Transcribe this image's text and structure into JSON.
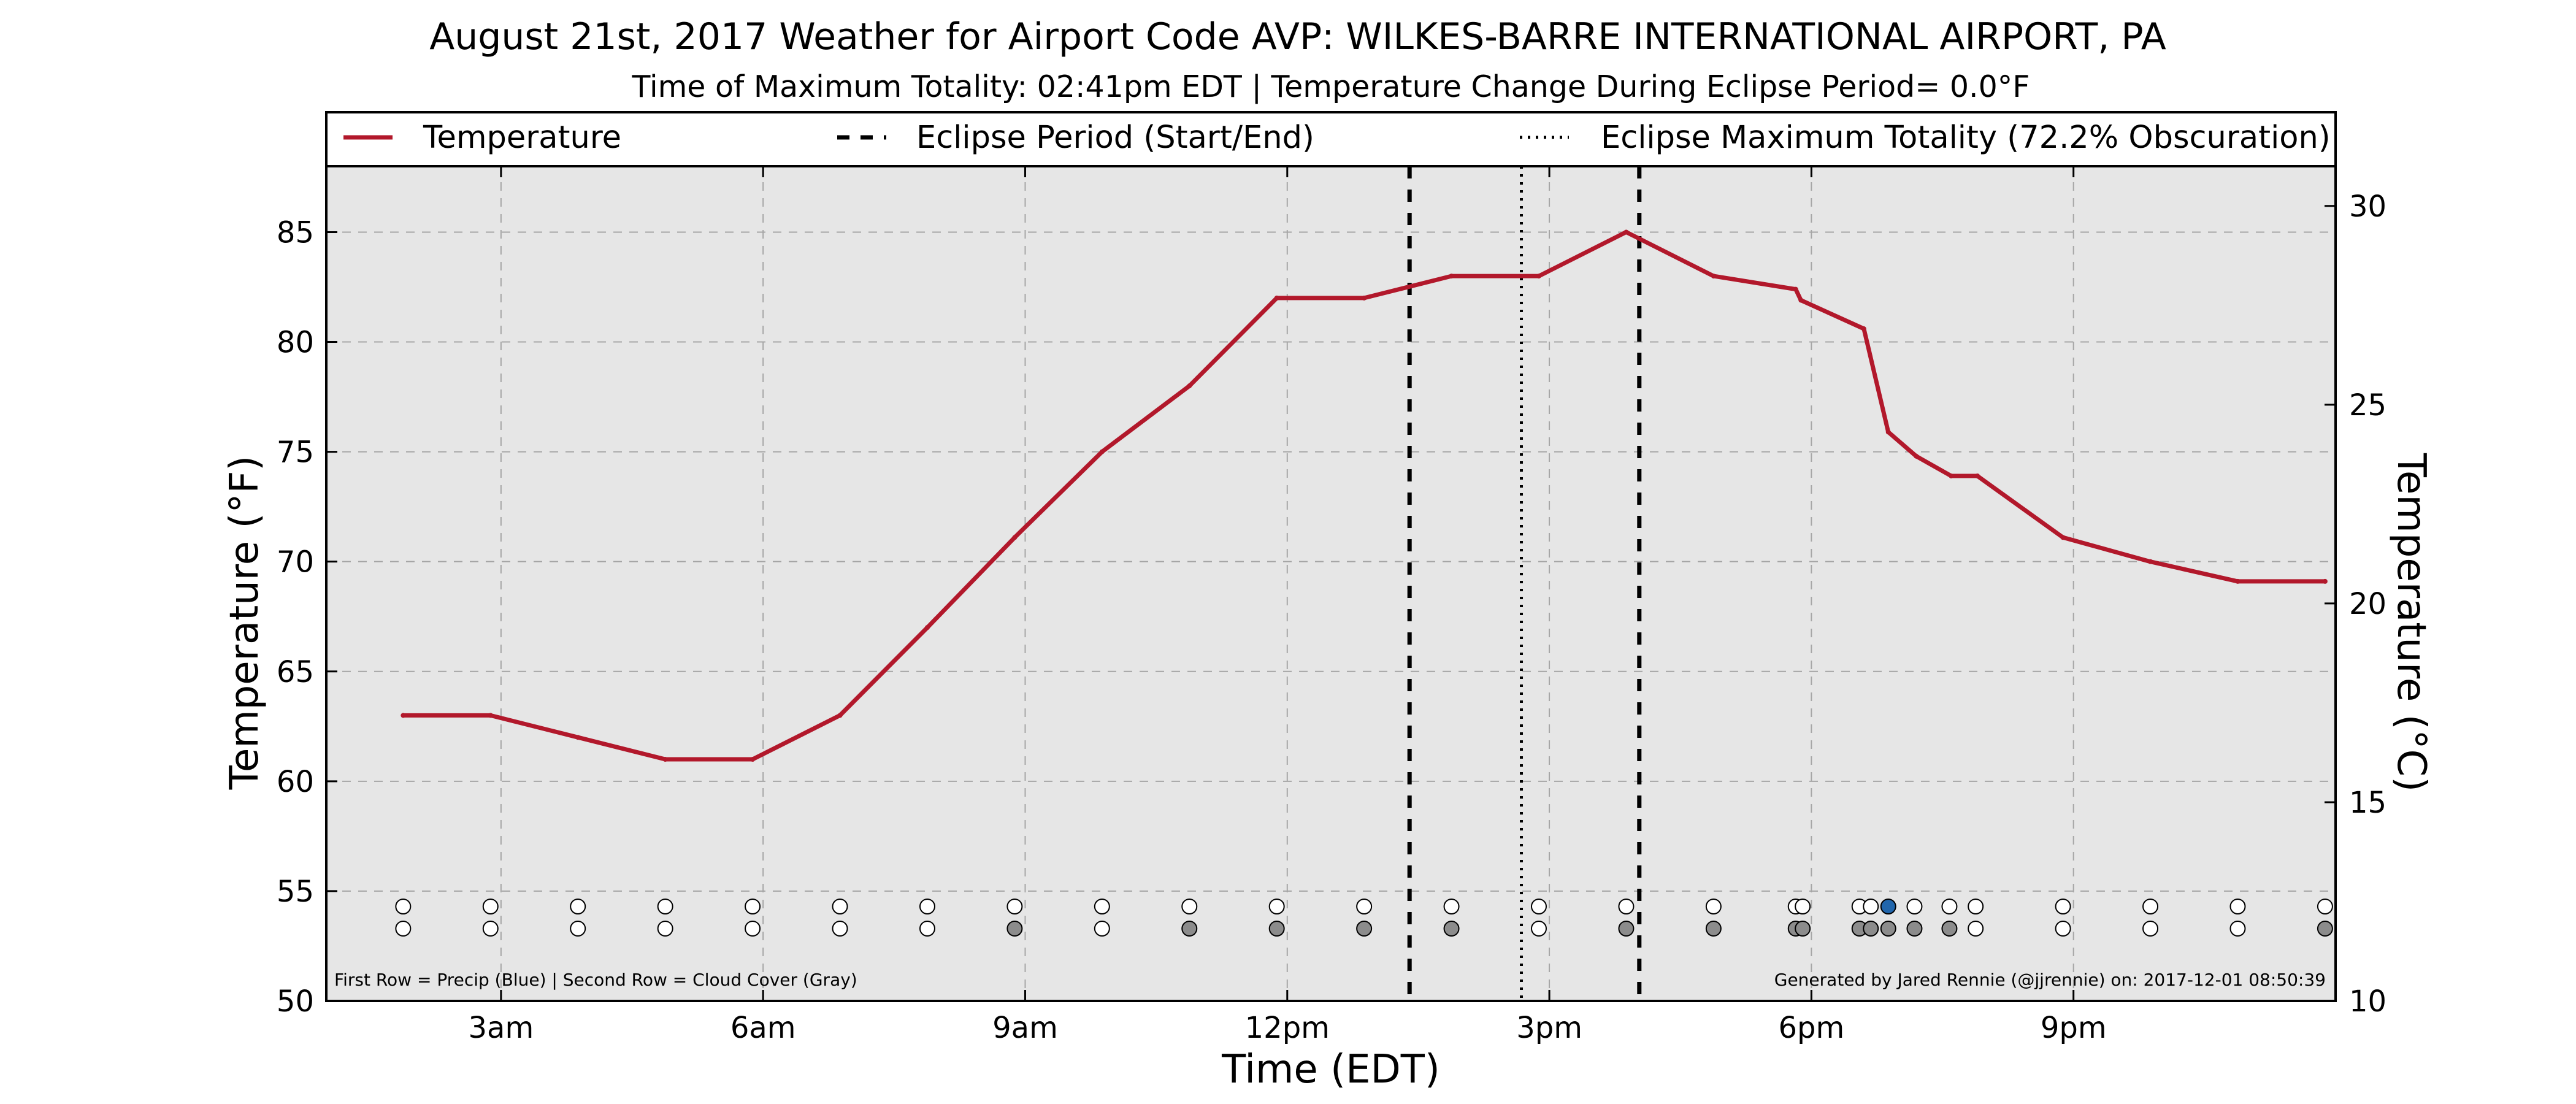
{
  "chart_data": {
    "type": "line",
    "title": "August 21st, 2017 Weather for Airport Code AVP: WILKES-BARRE INTERNATIONAL AIRPORT, PA",
    "subtitle": "Time of Maximum Totality: 02:41pm EDT | Temperature Change During Eclipse Period= 0.0°F",
    "xlabel": "Time (EDT)",
    "ylabel": "Temperature (°F)",
    "y2label": "Temperature (°C)",
    "xlim": [
      1.0,
      24.0
    ],
    "ylim": [
      50,
      88
    ],
    "y2lim": [
      10,
      31
    ],
    "x_ticks": [
      {
        "label": "3am",
        "hour": 3
      },
      {
        "label": "6am",
        "hour": 6
      },
      {
        "label": "9am",
        "hour": 9
      },
      {
        "label": "12pm",
        "hour": 12
      },
      {
        "label": "3pm",
        "hour": 15
      },
      {
        "label": "6pm",
        "hour": 18
      },
      {
        "label": "9pm",
        "hour": 21
      }
    ],
    "y_ticks": [
      50,
      55,
      60,
      65,
      70,
      75,
      80,
      85
    ],
    "y2_ticks": [
      10,
      15,
      20,
      25,
      30
    ],
    "grid": true,
    "legend_position": "top",
    "legend": [
      {
        "label": "Temperature",
        "style": "solid",
        "color": "#b2182b"
      },
      {
        "label": "Eclipse Period (Start/End)",
        "style": "dashed",
        "color": "#000000"
      },
      {
        "label": "Eclipse Maximum Totality (72.2% Obscuration)",
        "style": "dotted",
        "color": "#000000"
      }
    ],
    "series": [
      {
        "name": "Temperature",
        "color": "#b2182b",
        "x": [
          1.88,
          2.88,
          3.88,
          4.88,
          5.88,
          6.88,
          7.88,
          8.88,
          9.88,
          10.88,
          11.88,
          12.88,
          13.88,
          14.88,
          15.88,
          16.88,
          17.82,
          17.88,
          18.6,
          18.88,
          19.2,
          19.6,
          19.9,
          20.88,
          21.88,
          22.88,
          23.88
        ],
        "y": [
          63,
          63,
          62,
          61,
          61,
          63,
          67,
          71.1,
          75,
          78,
          82,
          82,
          83,
          83,
          85,
          83,
          82.4,
          81.9,
          80.6,
          75.9,
          74.8,
          73.9,
          73.9,
          71.1,
          70,
          69.1,
          69.1
        ]
      }
    ],
    "eclipse_start_hour": 13.4,
    "eclipse_end_hour": 16.03,
    "eclipse_max_hour": 14.68,
    "precip_color": "#2166ac",
    "cloud_color": "#8c8c8c",
    "clear_color": "#ffffff",
    "precip_row": [
      {
        "hour": 1.88,
        "v": 0
      },
      {
        "hour": 2.88,
        "v": 0
      },
      {
        "hour": 3.88,
        "v": 0
      },
      {
        "hour": 4.88,
        "v": 0
      },
      {
        "hour": 5.88,
        "v": 0
      },
      {
        "hour": 6.88,
        "v": 0
      },
      {
        "hour": 7.88,
        "v": 0
      },
      {
        "hour": 8.88,
        "v": 0
      },
      {
        "hour": 9.88,
        "v": 0
      },
      {
        "hour": 10.88,
        "v": 0
      },
      {
        "hour": 11.88,
        "v": 0
      },
      {
        "hour": 12.88,
        "v": 0
      },
      {
        "hour": 13.88,
        "v": 0
      },
      {
        "hour": 14.88,
        "v": 0
      },
      {
        "hour": 15.88,
        "v": 0
      },
      {
        "hour": 16.88,
        "v": 0
      },
      {
        "hour": 17.82,
        "v": 0
      },
      {
        "hour": 17.9,
        "v": 0
      },
      {
        "hour": 18.55,
        "v": 0
      },
      {
        "hour": 18.68,
        "v": 0
      },
      {
        "hour": 18.88,
        "v": 1
      },
      {
        "hour": 19.18,
        "v": 0
      },
      {
        "hour": 19.58,
        "v": 0
      },
      {
        "hour": 19.88,
        "v": 0
      },
      {
        "hour": 20.88,
        "v": 0
      },
      {
        "hour": 21.88,
        "v": 0
      },
      {
        "hour": 22.88,
        "v": 0
      },
      {
        "hour": 23.88,
        "v": 0
      }
    ],
    "cloud_row": [
      {
        "hour": 1.88,
        "v": 0
      },
      {
        "hour": 2.88,
        "v": 0
      },
      {
        "hour": 3.88,
        "v": 0
      },
      {
        "hour": 4.88,
        "v": 0
      },
      {
        "hour": 5.88,
        "v": 0
      },
      {
        "hour": 6.88,
        "v": 0
      },
      {
        "hour": 7.88,
        "v": 0
      },
      {
        "hour": 8.88,
        "v": 1
      },
      {
        "hour": 9.88,
        "v": 0
      },
      {
        "hour": 10.88,
        "v": 1
      },
      {
        "hour": 11.88,
        "v": 1
      },
      {
        "hour": 12.88,
        "v": 1
      },
      {
        "hour": 13.88,
        "v": 1
      },
      {
        "hour": 14.88,
        "v": 0
      },
      {
        "hour": 15.88,
        "v": 1
      },
      {
        "hour": 16.88,
        "v": 1
      },
      {
        "hour": 17.82,
        "v": 1
      },
      {
        "hour": 17.9,
        "v": 1
      },
      {
        "hour": 18.55,
        "v": 1
      },
      {
        "hour": 18.68,
        "v": 1
      },
      {
        "hour": 18.88,
        "v": 1
      },
      {
        "hour": 19.18,
        "v": 1
      },
      {
        "hour": 19.58,
        "v": 1
      },
      {
        "hour": 19.88,
        "v": 0
      },
      {
        "hour": 20.88,
        "v": 0
      },
      {
        "hour": 21.88,
        "v": 0
      },
      {
        "hour": 22.88,
        "v": 0
      },
      {
        "hour": 23.88,
        "v": 1
      }
    ],
    "footnote_left": "First Row = Precip (Blue) | Second Row = Cloud Cover (Gray)",
    "footnote_right": "Generated by Jared Rennie (@jjrennie) on: 2017-12-01 08:50:39"
  }
}
